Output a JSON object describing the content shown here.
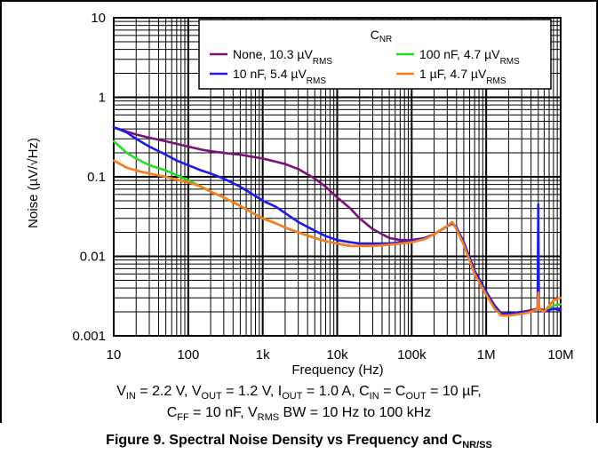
{
  "colors": {
    "none": "#7b0f7b",
    "c100n": "#22dd22",
    "c10n": "#1a1aee",
    "c1u": "#ff7a1a",
    "grid": "#000000"
  },
  "conditions": {
    "line1": [
      {
        "t": "V"
      },
      {
        "s": "IN"
      },
      {
        "t": " = 2.2 V, V"
      },
      {
        "s": "OUT"
      },
      {
        "t": " = 1.2 V, I"
      },
      {
        "s": "OUT"
      },
      {
        "t": " = 1.0 A, C"
      },
      {
        "s": "IN"
      },
      {
        "t": " = C"
      },
      {
        "s": "OUT"
      },
      {
        "t": " = 10 µF,"
      }
    ],
    "line2": [
      {
        "t": "C"
      },
      {
        "s": "FF"
      },
      {
        "t": " = 10 nF, V"
      },
      {
        "s": "RMS"
      },
      {
        "t": " BW = 10 Hz to 100 kHz"
      }
    ]
  },
  "caption": [
    {
      "t": "Figure 9. Spectral Noise Density vs Frequency and C"
    },
    {
      "s": "NR/SS"
    }
  ],
  "chart_data": {
    "type": "line",
    "title": "",
    "xlabel": "Frequency (Hz)",
    "ylabel": "Noise (µV/√Hz)",
    "xscale": "log",
    "yscale": "log",
    "xlim": [
      10,
      10000000
    ],
    "ylim": [
      0.001,
      10
    ],
    "grid": true,
    "legend_title": "CNR",
    "legend_placement": "top-right",
    "x_ticks": [
      {
        "v": 10,
        "label": "10"
      },
      {
        "v": 100,
        "label": "100"
      },
      {
        "v": 1000,
        "label": "1k"
      },
      {
        "v": 10000,
        "label": "10k"
      },
      {
        "v": 100000,
        "label": "100k"
      },
      {
        "v": 1000000,
        "label": "1M"
      },
      {
        "v": 10000000,
        "label": "10M"
      }
    ],
    "y_ticks": [
      {
        "v": 0.001,
        "label": "0.001"
      },
      {
        "v": 0.01,
        "label": "0.01"
      },
      {
        "v": 0.1,
        "label": "0.1"
      },
      {
        "v": 1,
        "label": "1"
      },
      {
        "v": 10,
        "label": "10"
      }
    ],
    "x": [
      10,
      15,
      20,
      30,
      50,
      70,
      100,
      150,
      200,
      300,
      500,
      700,
      1000,
      1500,
      2000,
      3000,
      5000,
      7000,
      10000,
      15000,
      20000,
      30000,
      50000,
      70000,
      100000,
      150000,
      200000,
      300000,
      350000,
      400000,
      500000,
      700000,
      1000000,
      1300000,
      1600000,
      2000000,
      3000000,
      4000000,
      4900000,
      5000000,
      5100000,
      6000000,
      8000000,
      10000000
    ],
    "series": [
      {
        "legend": [
          {
            "t": "None, 10.3 µV"
          },
          {
            "s": "RMS"
          }
        ],
        "color_key": "none",
        "values": [
          0.42,
          0.37,
          0.34,
          0.31,
          0.28,
          0.26,
          0.24,
          0.22,
          0.21,
          0.2,
          0.19,
          0.18,
          0.17,
          0.155,
          0.145,
          0.125,
          0.095,
          0.075,
          0.055,
          0.04,
          0.03,
          0.022,
          0.017,
          0.016,
          0.016,
          0.017,
          0.019,
          0.024,
          0.026,
          0.023,
          0.015,
          0.0065,
          0.0035,
          0.0024,
          0.0019,
          0.0019,
          0.002,
          0.0021,
          0.0022,
          0.0023,
          0.0022,
          0.0021,
          0.0022,
          0.0022
        ]
      },
      {
        "legend": [
          {
            "t": "100 nF, 4.7  µV"
          },
          {
            "s": "RMS"
          }
        ],
        "color_key": "c100n",
        "values": [
          0.28,
          0.2,
          0.17,
          0.14,
          0.12,
          0.105,
          0.09,
          0.075,
          0.065,
          0.055,
          0.043,
          0.036,
          0.03,
          0.026,
          0.023,
          0.02,
          0.017,
          0.0155,
          0.0145,
          0.0135,
          0.0135,
          0.0135,
          0.014,
          0.0145,
          0.015,
          0.0165,
          0.019,
          0.024,
          0.027,
          0.022,
          0.014,
          0.006,
          0.0033,
          0.0022,
          0.0018,
          0.0018,
          0.0019,
          0.002,
          0.0022,
          0.0028,
          0.0022,
          0.002,
          0.0024,
          0.0025
        ]
      },
      {
        "legend": [
          {
            "t": "10 nF, 5.4 µV"
          },
          {
            "s": "RMS"
          }
        ],
        "color_key": "c10n",
        "values": [
          0.42,
          0.36,
          0.3,
          0.24,
          0.19,
          0.16,
          0.14,
          0.12,
          0.11,
          0.095,
          0.075,
          0.062,
          0.05,
          0.042,
          0.035,
          0.027,
          0.021,
          0.018,
          0.016,
          0.015,
          0.0145,
          0.0145,
          0.0145,
          0.015,
          0.0155,
          0.017,
          0.019,
          0.024,
          0.026,
          0.023,
          0.015,
          0.0065,
          0.0036,
          0.0024,
          0.0019,
          0.0019,
          0.002,
          0.002,
          0.0022,
          0.045,
          0.0022,
          0.002,
          0.0022,
          0.0021
        ]
      },
      {
        "legend": [
          {
            "t": "1 µF, 4.7  µV"
          },
          {
            "s": "RMS"
          }
        ],
        "color_key": "c1u",
        "values": [
          0.16,
          0.13,
          0.12,
          0.11,
          0.1,
          0.092,
          0.085,
          0.075,
          0.065,
          0.055,
          0.043,
          0.036,
          0.03,
          0.026,
          0.023,
          0.02,
          0.017,
          0.0155,
          0.0145,
          0.0135,
          0.0135,
          0.0135,
          0.014,
          0.0145,
          0.015,
          0.0165,
          0.019,
          0.024,
          0.027,
          0.022,
          0.014,
          0.006,
          0.0033,
          0.0022,
          0.0018,
          0.0018,
          0.0019,
          0.002,
          0.0022,
          0.0035,
          0.0022,
          0.002,
          0.0028,
          0.003
        ]
      }
    ]
  }
}
